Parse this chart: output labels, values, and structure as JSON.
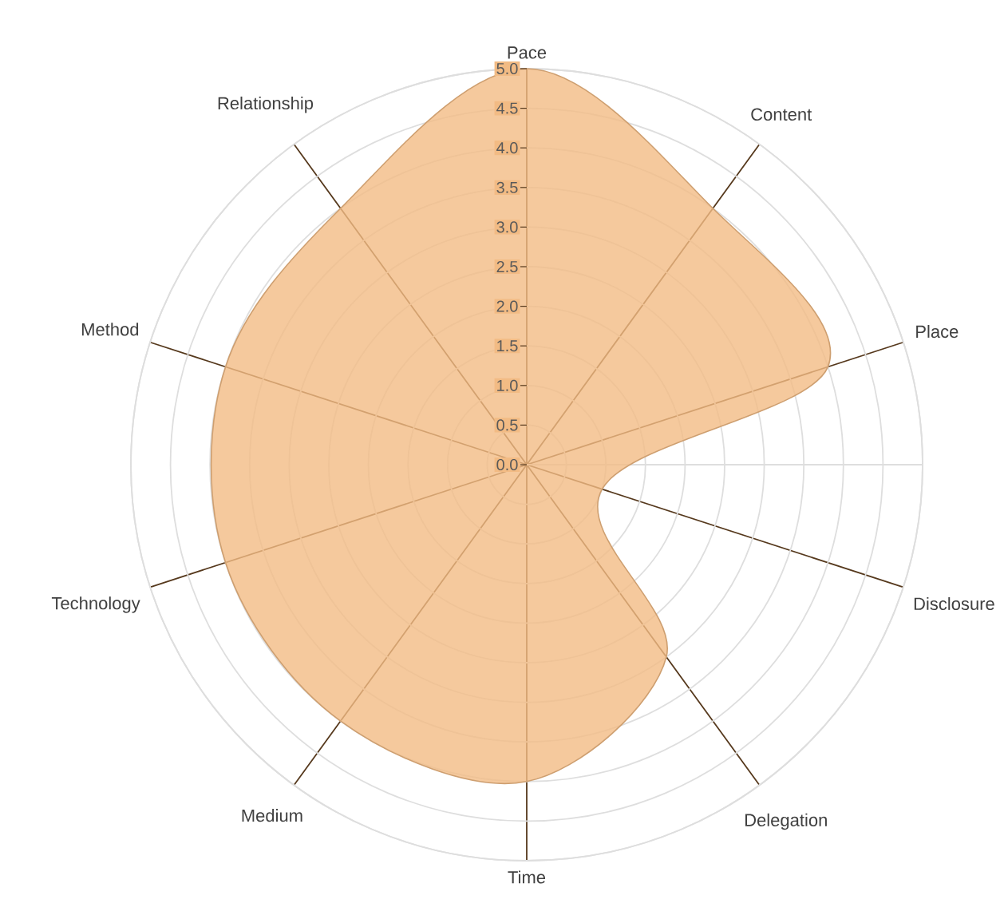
{
  "chart_data": {
    "type": "radar",
    "categories": [
      "Pace",
      "Content",
      "Place",
      "Disclosure",
      "Delegation",
      "Time",
      "Medium",
      "Technology",
      "Method",
      "Relationship"
    ],
    "series": [
      {
        "color": "#f2bb84",
        "values": [
          5.0,
          4.0,
          4.0,
          1.0,
          3.0,
          4.0,
          4.0,
          4.0,
          4.0,
          4.0
        ]
      }
    ],
    "ylim": [
      0,
      5
    ],
    "yticks": [
      {
        "value": 0,
        "label": "0.0"
      },
      {
        "value": 0.5,
        "label": "0.5"
      },
      {
        "value": 1,
        "label": "1.0"
      },
      {
        "value": 1.5,
        "label": "1.5"
      },
      {
        "value": 2,
        "label": "2.0"
      },
      {
        "value": 2.5,
        "label": "2.5"
      },
      {
        "value": 3,
        "label": "3.0"
      },
      {
        "value": 3.5,
        "label": "3.5"
      },
      {
        "value": 4,
        "label": "4.0"
      },
      {
        "value": 4.5,
        "label": "4.5"
      },
      {
        "value": 5,
        "label": "5.0"
      }
    ],
    "grid": true
  }
}
